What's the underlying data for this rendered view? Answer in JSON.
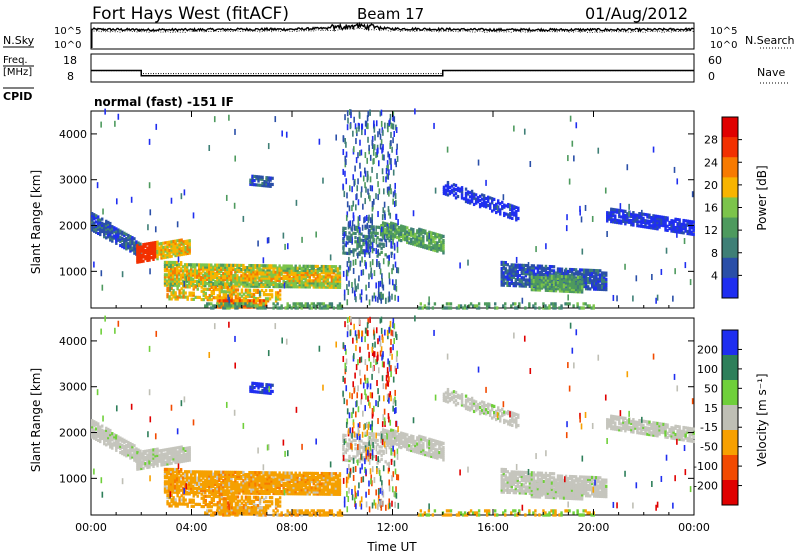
{
  "header": {
    "station": "Fort Hays West (fitACF)",
    "beam": "Beam 17",
    "date": "01/Aug/2012"
  },
  "side_labels": {
    "nsky": "N.Sky",
    "freq_top": "Freq.",
    "freq_unit": "[MHz]",
    "cpid": "CPID",
    "nsearch": "N.Search",
    "nave": "Nave"
  },
  "mode_text": "normal (fast) -151 IF",
  "colors": {
    "power_scale": [
      "#1f2ef0",
      "#2a4fa8",
      "#3f7f76",
      "#4e9a5e",
      "#7cc44b",
      "#f7b400",
      "#f77a00",
      "#f23000",
      "#e00000"
    ],
    "velocity_scale": [
      "#e00000",
      "#f24a00",
      "#f7a000",
      "#bfbfb5",
      "#6fcf3a",
      "#2e7f5a",
      "#1f2ef0"
    ],
    "velocity_gray": "#c5c5bd",
    "velocity_orange": "#f5a000"
  },
  "chart_data": [
    {
      "type": "line",
      "panel": "noise",
      "ylabel_left": "N.Sky",
      "ylabel_right": "N.Search",
      "yticks_left": [
        "10^5",
        "10^0"
      ],
      "yticks_right": [
        "10^5",
        "10^0"
      ],
      "x_hours": [
        0,
        2,
        4,
        6,
        8,
        10,
        10.5,
        11,
        12,
        14,
        16,
        18,
        20,
        22,
        24
      ],
      "n_sky_level": [
        3.9,
        3.8,
        3.8,
        3.9,
        3.9,
        4.2,
        4.4,
        4.3,
        4.0,
        3.9,
        3.8,
        3.8,
        3.8,
        3.8,
        3.9
      ]
    },
    {
      "type": "line",
      "panel": "frequency",
      "ylabel_left": "Freq. [MHz]",
      "ylabel_right": "Nave",
      "yticks_left": [
        "18",
        "8"
      ],
      "yticks_right": [
        "60",
        "0"
      ],
      "freq_steps": [
        [
          0,
          2.0,
          13.0
        ],
        [
          2.0,
          14.0,
          10.5
        ],
        [
          14.0,
          24,
          13.0
        ]
      ],
      "nave_level": 26
    },
    {
      "type": "heatmap",
      "panel": "power",
      "title": "normal (fast) -151 IF",
      "xlabel": "",
      "ylabel": "Slant Range [km]",
      "colorbar_label": "Power [dB]",
      "colorbar_ticks": [
        "28",
        "24",
        "20",
        "16",
        "12",
        "8",
        "4"
      ],
      "colorbar_range": [
        0,
        32
      ],
      "yticks": [
        "1000",
        "2000",
        "3000",
        "4000"
      ],
      "ylim": [
        200,
        4500
      ],
      "xlim": [
        0,
        24
      ]
    },
    {
      "type": "heatmap",
      "panel": "velocity",
      "xlabel": "Time UT",
      "ylabel": "Slant Range [km]",
      "colorbar_label": "Velocity [m s⁻¹]",
      "colorbar_ticks": [
        "200",
        "100",
        "50",
        "15",
        "-15",
        "-50",
        "-100",
        "-200"
      ],
      "yticks": [
        "1000",
        "2000",
        "3000",
        "4000"
      ],
      "xticks": [
        "00:00",
        "04:00",
        "08:00",
        "12:00",
        "16:00",
        "20:00",
        "00:00"
      ],
      "ylim": [
        200,
        4500
      ],
      "xlim": [
        0,
        24
      ]
    }
  ]
}
